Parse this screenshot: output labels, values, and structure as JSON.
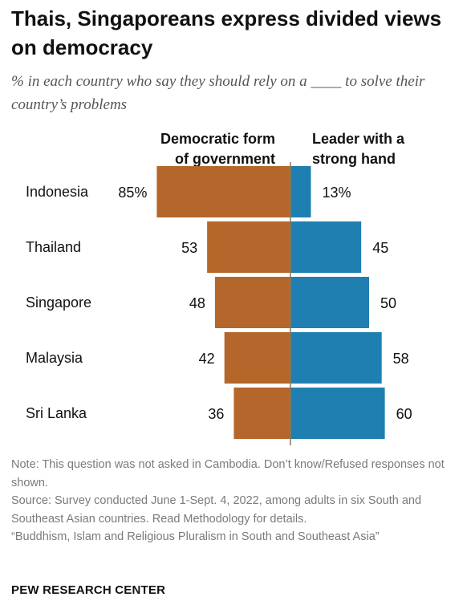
{
  "header": {
    "title": "Thais, Singaporeans express divided views on democracy",
    "subtitle": "% in each country who say they should rely on a ____ to solve their country’s problems"
  },
  "chart_data": {
    "type": "bar",
    "orientation": "diverging-horizontal",
    "categories": [
      "Indonesia",
      "Thailand",
      "Singapore",
      "Malaysia",
      "Sri Lanka"
    ],
    "series": [
      {
        "name": "Democratic form of government",
        "values": [
          85,
          53,
          48,
          42,
          36
        ],
        "color": "#B5662A"
      },
      {
        "name": "Leader with a strong hand",
        "values": [
          13,
          45,
          50,
          58,
          60
        ],
        "color": "#1E7FB0"
      }
    ],
    "value_labels": {
      "left": [
        "85%",
        "53",
        "48",
        "42",
        "36"
      ],
      "right": [
        "13%",
        "45",
        "50",
        "58",
        "60"
      ]
    },
    "legend_lines": {
      "left": [
        "Democratic form",
        "of government"
      ],
      "right": [
        "Leader with a",
        "strong hand"
      ]
    },
    "divider_color": "#8a7a55"
  },
  "footer": {
    "note": "Note: This question was not asked in Cambodia. Don’t know/Refused responses not shown.",
    "source": "Source: Survey conducted June 1-Sept. 4, 2022, among adults in six South and Southeast Asian countries. Read Methodology for details.",
    "report": "“Buddhism, Islam and Religious Pluralism in South and Southeast Asia”",
    "brand": "PEW RESEARCH CENTER"
  }
}
